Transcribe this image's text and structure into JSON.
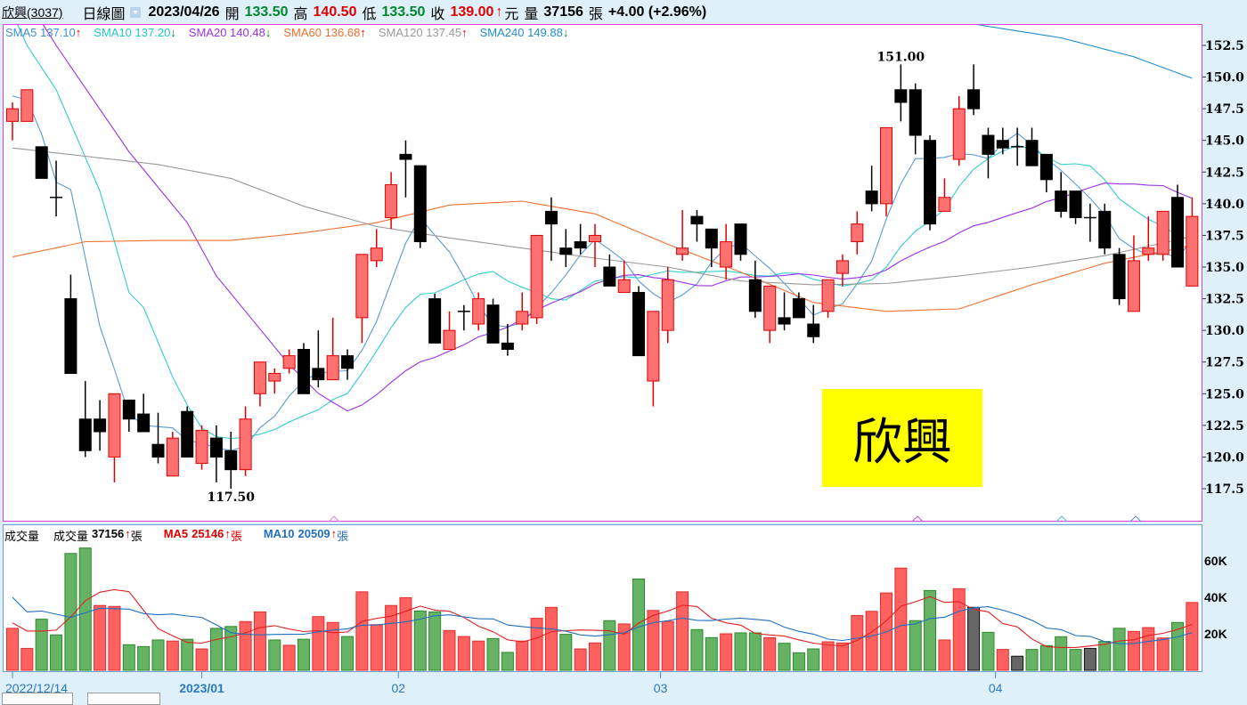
{
  "header": {
    "stock": "欣興(3037)",
    "chart_type": "日線圖",
    "date": "2023/04/26",
    "open_label": "開",
    "open": "133.50",
    "high_label": "高",
    "high": "140.50",
    "low_label": "低",
    "low": "133.50",
    "close_label": "收",
    "close": "139.00",
    "up_arrow": "↑",
    "currency": "元",
    "volume_label": "量",
    "volume": "37156",
    "volume_unit": "張",
    "change": "+4.00 (+2.96%)"
  },
  "ma_legend": [
    {
      "label": "SMA5",
      "value": "137.10",
      "dir": "↑",
      "color": "#3f8fd8"
    },
    {
      "label": "SMA10",
      "value": "137.20",
      "dir": "↓",
      "color": "#20c8c8"
    },
    {
      "label": "SMA20",
      "value": "140.48",
      "dir": "↓",
      "color": "#9b30e8"
    },
    {
      "label": "SMA60",
      "value": "136.68",
      "dir": "↑",
      "color": "#f07030"
    },
    {
      "label": "SMA120",
      "value": "137.45",
      "dir": "↑",
      "color": "#999999"
    },
    {
      "label": "SMA240",
      "value": "149.88",
      "dir": "↓",
      "color": "#1f8fd0"
    }
  ],
  "volume_legend": {
    "title": "成交量",
    "vol_label": "成交量",
    "vol_value": "37156",
    "vol_dir": "↑",
    "unit": "張",
    "ma5_label": "MA5",
    "ma5_value": "25146",
    "ma5_dir": "↑",
    "ma5_color": "#e00000",
    "ma10_label": "MA10",
    "ma10_value": "20509",
    "ma10_dir": "↑",
    "ma10_color": "#1f6fc0"
  },
  "name_box": {
    "text": "欣興",
    "color": "#ffff00"
  },
  "chart_data": {
    "type": "candlestick",
    "price_axis": {
      "range": [
        115,
        154
      ],
      "ticks": [
        "117.5",
        "120.0",
        "122.5",
        "125.0",
        "127.5",
        "130.0",
        "132.5",
        "135.0",
        "137.5",
        "140.0",
        "142.5",
        "145.0",
        "147.5",
        "150.0",
        "152.5"
      ]
    },
    "volume_axis": {
      "ticks": [
        {
          "v": 20000,
          "label": "20K"
        },
        {
          "v": 40000,
          "label": "40K"
        },
        {
          "v": 60000,
          "label": "60K"
        }
      ]
    },
    "x_labels": [
      {
        "index": 0,
        "label": "2022/12/14",
        "bold": false
      },
      {
        "index": 13,
        "label": "2023/01",
        "bold": true
      },
      {
        "index": 26.5,
        "label": "02",
        "bold": false
      },
      {
        "index": 44.5,
        "label": "03",
        "bold": false
      },
      {
        "index": 67.5,
        "label": "04",
        "bold": false
      }
    ],
    "annotations": [
      {
        "index": 61,
        "value": 151.0,
        "label": "151.00",
        "pos": "above"
      },
      {
        "index": 15,
        "value": 117.5,
        "label": "117.50",
        "pos": "below"
      }
    ],
    "colors": {
      "up": "#ff7070",
      "up_edge": "#e00000",
      "down": "#000000",
      "vol_up": "#ff6060",
      "vol_down": "#66b366",
      "vol_flat": "#666666"
    },
    "ohlc": [
      [
        146.5,
        148,
        145,
        147.5
      ],
      [
        146.5,
        149,
        146.5,
        149
      ],
      [
        144.5,
        144.5,
        142,
        142
      ],
      [
        140.5,
        143.4,
        139,
        140.5
      ],
      [
        132.5,
        134.4,
        126.6,
        126.6
      ],
      [
        123,
        126,
        120,
        120.5
      ],
      [
        123,
        124.5,
        120.5,
        122
      ],
      [
        120,
        125,
        118,
        125
      ],
      [
        124.5,
        124.5,
        122,
        123
      ],
      [
        123.4,
        125,
        122,
        122
      ],
      [
        121,
        123.5,
        119.5,
        120
      ],
      [
        118.5,
        122,
        118.5,
        121.5
      ],
      [
        123.6,
        124,
        120,
        120
      ],
      [
        119.5,
        122.5,
        119,
        122.1
      ],
      [
        121.5,
        122.5,
        118,
        120
      ],
      [
        120.5,
        122,
        117.5,
        119
      ],
      [
        119,
        124,
        118.5,
        123
      ],
      [
        125,
        127.5,
        124,
        127.5
      ],
      [
        126,
        127,
        125,
        126.6
      ],
      [
        127,
        128.5,
        126.6,
        128
      ],
      [
        128.5,
        129,
        125,
        125
      ],
      [
        127,
        130,
        125.5,
        126.1
      ],
      [
        126.1,
        131,
        126.1,
        128
      ],
      [
        128,
        128.5,
        126.1,
        127
      ],
      [
        131,
        136,
        129,
        136
      ],
      [
        135.5,
        138,
        135,
        136.5
      ],
      [
        138.9,
        142.5,
        138,
        141.5
      ],
      [
        143.9,
        145,
        140.5,
        143.5
      ],
      [
        143,
        143,
        136.5,
        137
      ],
      [
        132.5,
        132.9,
        129,
        129
      ],
      [
        128.5,
        131.5,
        128.5,
        130
      ],
      [
        131.5,
        132,
        130,
        131.5
      ],
      [
        130.5,
        133,
        130,
        132.5
      ],
      [
        132,
        132.5,
        129,
        129
      ],
      [
        129,
        130.5,
        128,
        128.5
      ],
      [
        130.5,
        133,
        130,
        131.5
      ],
      [
        131,
        137.5,
        130.5,
        137.5
      ],
      [
        139.4,
        140.5,
        135.5,
        138.4
      ],
      [
        136.5,
        138,
        135,
        136
      ],
      [
        137,
        138.4,
        136,
        136.5
      ],
      [
        137,
        138.4,
        135,
        137.5
      ],
      [
        135,
        136,
        133.5,
        133.5
      ],
      [
        133,
        135.5,
        133,
        134
      ],
      [
        133,
        133.5,
        128,
        128
      ],
      [
        126,
        131.5,
        124,
        131.5
      ],
      [
        130,
        135,
        129,
        134
      ],
      [
        136,
        139.5,
        135.5,
        136.5
      ],
      [
        139,
        139.5,
        137,
        138.4
      ],
      [
        138,
        138,
        135,
        136.5
      ],
      [
        135,
        138.4,
        134,
        137
      ],
      [
        138.4,
        138.4,
        135.5,
        136
      ],
      [
        134,
        135.5,
        131,
        131.5
      ],
      [
        130,
        133.5,
        129,
        133.5
      ],
      [
        131,
        133,
        130,
        130.5
      ],
      [
        132.5,
        133,
        131,
        131
      ],
      [
        130.5,
        132,
        129,
        129.5
      ],
      [
        131.5,
        134,
        131,
        134
      ],
      [
        134.5,
        136,
        133.5,
        135.5
      ],
      [
        137,
        139.4,
        136,
        138.4
      ],
      [
        141,
        143,
        139.4,
        140
      ],
      [
        140,
        146,
        139,
        146
      ],
      [
        149,
        151,
        146.5,
        148
      ],
      [
        149,
        149.5,
        143.9,
        145.4
      ],
      [
        145,
        145.4,
        137.9,
        138.4
      ],
      [
        139.4,
        142,
        139.4,
        140.5
      ],
      [
        143.5,
        148.5,
        143,
        147.5
      ],
      [
        149,
        151,
        147,
        147.5
      ],
      [
        145.4,
        146,
        142,
        143.9
      ],
      [
        145,
        146,
        143.9,
        144.4
      ],
      [
        144.5,
        146,
        143,
        144.5
      ],
      [
        145,
        146,
        143,
        143
      ],
      [
        143.9,
        143.9,
        140.9,
        141.9
      ],
      [
        141,
        142.5,
        138.9,
        139.4
      ],
      [
        141,
        141,
        138.4,
        138.9
      ],
      [
        138.9,
        140,
        137,
        138.9
      ],
      [
        139.4,
        140,
        136,
        136.5
      ],
      [
        136,
        136.5,
        132,
        132.5
      ],
      [
        131.5,
        137.5,
        131.5,
        135.5
      ],
      [
        136,
        139,
        135.5,
        136.5
      ],
      [
        136,
        139.4,
        135.5,
        139.4
      ],
      [
        140.5,
        141.5,
        135,
        135
      ],
      [
        133.5,
        140.5,
        133.5,
        139
      ]
    ],
    "volume": [
      23000,
      12000,
      28000,
      19400,
      64000,
      67000,
      35500,
      35000,
      14000,
      13000,
      16600,
      16000,
      17000,
      11700,
      23000,
      24000,
      26700,
      32000,
      16600,
      13700,
      17000,
      29400,
      26200,
      18500,
      43000,
      25000,
      35500,
      39800,
      32500,
      32000,
      21800,
      18500,
      16000,
      17400,
      9800,
      16000,
      28500,
      34500,
      19700,
      11700,
      15000,
      27200,
      25400,
      50000,
      32800,
      26800,
      43000,
      22300,
      17900,
      20000,
      20500,
      20500,
      17900,
      14800,
      9600,
      11700,
      15600,
      15000,
      30000,
      32300,
      42400,
      56000,
      27200,
      43700,
      16600,
      44700,
      34500,
      20800,
      11400,
      7700,
      11400,
      13500,
      18400,
      11400,
      12000,
      15800,
      23000,
      21300,
      23400,
      17700,
      26200,
      37156
    ],
    "volume_color": "rrggggrrgggrgrggrrgrgrrgrrrrggrrrggrrrgrrgrgrrrggrggrgggrrrrrrggrrkgrkggggkggrrrgr",
    "ma_series": [
      {
        "name": "SMA5",
        "window": 5,
        "color": "#5b9bd5",
        "lead": [
          [
            0,
            148.5
          ],
          [
            1,
            148.2
          ],
          [
            2,
            145.5
          ],
          [
            3,
            141.7
          ]
        ]
      },
      {
        "name": "SMA10",
        "window": 10,
        "color": "#33cccc",
        "lead": [
          [
            0,
            155
          ],
          [
            1,
            152.5
          ],
          [
            3,
            149
          ],
          [
            6,
            141
          ],
          [
            8,
            133
          ]
        ]
      },
      {
        "name": "SMA20",
        "window": 20,
        "color": "#9b30e8",
        "lead": [
          [
            0,
            158
          ],
          [
            3,
            152.5
          ],
          [
            8,
            144.1
          ],
          [
            12,
            138.5
          ],
          [
            14,
            134.3
          ],
          [
            18,
            128.7
          ]
        ]
      },
      {
        "name": "SMA60",
        "color": "#f07030",
        "knots": [
          [
            0,
            135.8
          ],
          [
            5,
            137
          ],
          [
            10,
            137.1
          ],
          [
            15,
            137.1
          ],
          [
            20,
            137.7
          ],
          [
            25,
            138.5
          ],
          [
            30,
            139.9
          ],
          [
            35,
            140.2
          ],
          [
            40,
            139.2
          ],
          [
            45,
            136.8
          ],
          [
            50,
            134.6
          ],
          [
            55,
            132.2
          ],
          [
            60,
            131.5
          ],
          [
            65,
            131.7
          ],
          [
            70,
            133.6
          ],
          [
            75,
            135.3
          ],
          [
            81,
            136.7
          ]
        ]
      },
      {
        "name": "SMA120",
        "color": "#999999",
        "knots": [
          [
            0,
            144.4
          ],
          [
            10,
            143.1
          ],
          [
            15,
            142
          ],
          [
            20,
            139.8
          ],
          [
            25,
            138.2
          ],
          [
            30,
            137.3
          ],
          [
            40,
            135.7
          ],
          [
            45,
            135
          ],
          [
            50,
            133.9
          ],
          [
            55,
            133.6
          ],
          [
            60,
            133.7
          ],
          [
            65,
            134.3
          ],
          [
            70,
            135
          ],
          [
            75,
            135.9
          ],
          [
            81,
            137.4
          ]
        ]
      },
      {
        "name": "SMA240",
        "color": "#1f8fd0",
        "knots": [
          [
            66,
            154.2
          ],
          [
            67,
            154.0
          ],
          [
            72,
            153.1
          ],
          [
            77,
            151.6
          ],
          [
            81,
            149.9
          ]
        ]
      }
    ],
    "volume_ma": [
      {
        "name": "MA5",
        "window": 5,
        "color": "#e02020",
        "lead": [
          [
            0,
            26000
          ],
          [
            1,
            21500
          ],
          [
            2,
            21500
          ],
          [
            3,
            22000
          ]
        ]
      },
      {
        "name": "MA10",
        "window": 10,
        "color": "#1f6fc0",
        "lead": [
          [
            0,
            40000
          ],
          [
            1,
            32000
          ],
          [
            2,
            32500
          ],
          [
            4,
            29000
          ],
          [
            6,
            34000
          ],
          [
            8,
            33500
          ]
        ]
      }
    ]
  }
}
